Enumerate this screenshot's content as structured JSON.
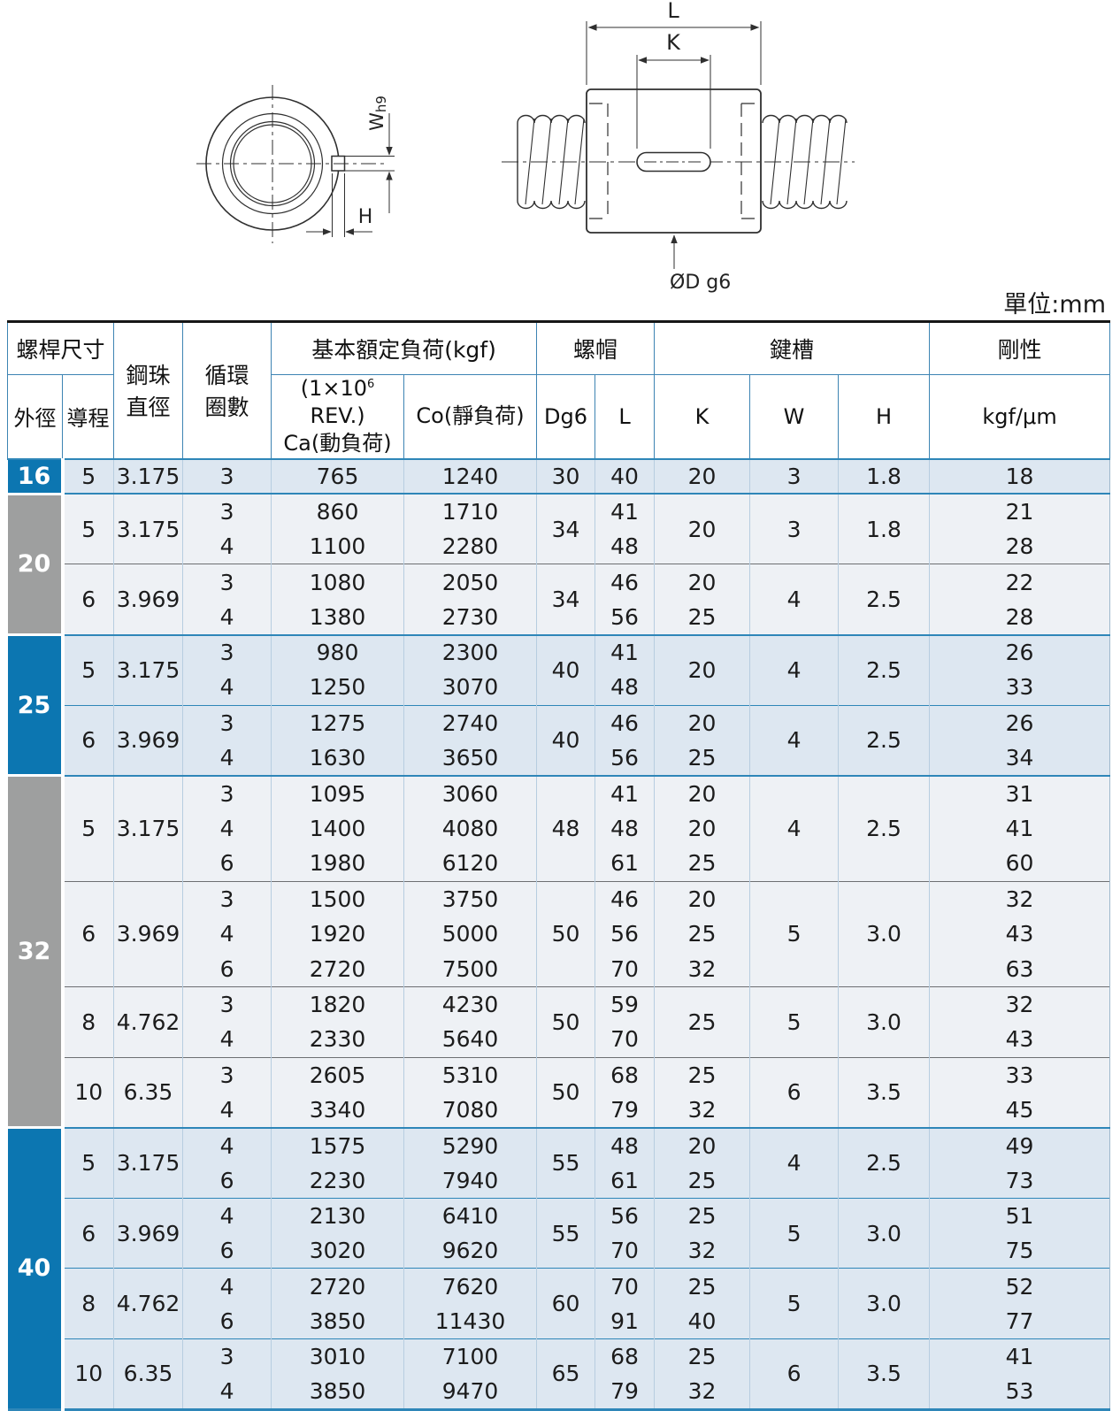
{
  "unit_label": "單位:mm",
  "diagram": {
    "left_view": {
      "width_label": "W",
      "width_tol": "h9",
      "depth_label": "H"
    },
    "side_view": {
      "length_label": "L",
      "keyway_label": "K",
      "diameter_label": "ØD g6"
    }
  },
  "table": {
    "header": {
      "screw_size": "螺桿尺寸",
      "outer_dia": "外徑",
      "lead": "導程",
      "ball_dia_l1": "鋼珠",
      "ball_dia_l2": "直徑",
      "circuits_l1": "循環",
      "circuits_l2": "圈數",
      "load": "基本額定負荷(kgf)",
      "rev_prefix": "(1×10",
      "rev_sup": "6",
      "rev_suffix": " REV.)",
      "ca": "Ca(動負荷)",
      "co": "Co(靜負荷)",
      "nut": "螺帽",
      "dg6": "Dg6",
      "l": "L",
      "keyway": "鍵槽",
      "k": "K",
      "w": "W",
      "h": "H",
      "rigidity": "剛性",
      "rigidity_unit": "kgf/μm"
    },
    "accent_blue": "#0c76b1",
    "accent_gray": "#9e9f9f",
    "groups": [
      {
        "dia": "16",
        "theme": "blue",
        "subs": [
          {
            "lead": "5",
            "ball": "3.175",
            "dg6": "30",
            "w": "3",
            "h": "1.8",
            "k": "20",
            "rows": [
              {
                "c": "3",
                "ca": "765",
                "co": "1240",
                "l": "40",
                "r": "18"
              }
            ]
          }
        ]
      },
      {
        "dia": "20",
        "theme": "gray",
        "subs": [
          {
            "lead": "5",
            "ball": "3.175",
            "dg6": "34",
            "w": "3",
            "h": "1.8",
            "k": "20",
            "rows": [
              {
                "c": "3",
                "ca": "860",
                "co": "1710",
                "l": "41",
                "r": "21"
              },
              {
                "c": "4",
                "ca": "1100",
                "co": "2280",
                "l": "48",
                "r": "28"
              }
            ]
          },
          {
            "lead": "6",
            "ball": "3.969",
            "dg6": "34",
            "w": "4",
            "h": "2.5",
            "rows": [
              {
                "c": "3",
                "ca": "1080",
                "co": "2050",
                "l": "46",
                "k": "20",
                "r": "22"
              },
              {
                "c": "4",
                "ca": "1380",
                "co": "2730",
                "l": "56",
                "k": "25",
                "r": "28"
              }
            ]
          }
        ]
      },
      {
        "dia": "25",
        "theme": "blue",
        "subs": [
          {
            "lead": "5",
            "ball": "3.175",
            "dg6": "40",
            "w": "4",
            "h": "2.5",
            "k": "20",
            "rows": [
              {
                "c": "3",
                "ca": "980",
                "co": "2300",
                "l": "41",
                "r": "26"
              },
              {
                "c": "4",
                "ca": "1250",
                "co": "3070",
                "l": "48",
                "r": "33"
              }
            ]
          },
          {
            "lead": "6",
            "ball": "3.969",
            "dg6": "40",
            "w": "4",
            "h": "2.5",
            "rows": [
              {
                "c": "3",
                "ca": "1275",
                "co": "2740",
                "l": "46",
                "k": "20",
                "r": "26"
              },
              {
                "c": "4",
                "ca": "1630",
                "co": "3650",
                "l": "56",
                "k": "25",
                "r": "34"
              }
            ]
          }
        ]
      },
      {
        "dia": "32",
        "theme": "gray",
        "subs": [
          {
            "lead": "5",
            "ball": "3.175",
            "dg6": "48",
            "w": "4",
            "h": "2.5",
            "rows": [
              {
                "c": "3",
                "ca": "1095",
                "co": "3060",
                "l": "41",
                "k": "20",
                "r": "31"
              },
              {
                "c": "4",
                "ca": "1400",
                "co": "4080",
                "l": "48",
                "k": "20",
                "r": "41"
              },
              {
                "c": "6",
                "ca": "1980",
                "co": "6120",
                "l": "61",
                "k": "25",
                "r": "60"
              }
            ]
          },
          {
            "lead": "6",
            "ball": "3.969",
            "dg6": "50",
            "w": "5",
            "h": "3.0",
            "rows": [
              {
                "c": "3",
                "ca": "1500",
                "co": "3750",
                "l": "46",
                "k": "20",
                "r": "32"
              },
              {
                "c": "4",
                "ca": "1920",
                "co": "5000",
                "l": "56",
                "k": "25",
                "r": "43"
              },
              {
                "c": "6",
                "ca": "2720",
                "co": "7500",
                "l": "70",
                "k": "32",
                "r": "63"
              }
            ]
          },
          {
            "lead": "8",
            "ball": "4.762",
            "dg6": "50",
            "w": "5",
            "h": "3.0",
            "k": "25",
            "rows": [
              {
                "c": "3",
                "ca": "1820",
                "co": "4230",
                "l": "59",
                "r": "32"
              },
              {
                "c": "4",
                "ca": "2330",
                "co": "5640",
                "l": "70",
                "r": "43"
              }
            ]
          },
          {
            "lead": "10",
            "ball": "6.35",
            "dg6": "50",
            "w": "6",
            "h": "3.5",
            "rows": [
              {
                "c": "3",
                "ca": "2605",
                "co": "5310",
                "l": "68",
                "k": "25",
                "r": "33"
              },
              {
                "c": "4",
                "ca": "3340",
                "co": "7080",
                "l": "79",
                "k": "32",
                "r": "45"
              }
            ]
          }
        ]
      },
      {
        "dia": "40",
        "theme": "blue",
        "subs": [
          {
            "lead": "5",
            "ball": "3.175",
            "dg6": "55",
            "w": "4",
            "h": "2.5",
            "rows": [
              {
                "c": "4",
                "ca": "1575",
                "co": "5290",
                "l": "48",
                "k": "20",
                "r": "49"
              },
              {
                "c": "6",
                "ca": "2230",
                "co": "7940",
                "l": "61",
                "k": "25",
                "r": "73"
              }
            ]
          },
          {
            "lead": "6",
            "ball": "3.969",
            "dg6": "55",
            "w": "5",
            "h": "3.0",
            "rows": [
              {
                "c": "4",
                "ca": "2130",
                "co": "6410",
                "l": "56",
                "k": "25",
                "r": "51"
              },
              {
                "c": "6",
                "ca": "3020",
                "co": "9620",
                "l": "70",
                "k": "32",
                "r": "75"
              }
            ]
          },
          {
            "lead": "8",
            "ball": "4.762",
            "dg6": "60",
            "w": "5",
            "h": "3.0",
            "rows": [
              {
                "c": "4",
                "ca": "2720",
                "co": "7620",
                "l": "70",
                "k": "25",
                "r": "52"
              },
              {
                "c": "6",
                "ca": "3850",
                "co": "11430",
                "l": "91",
                "k": "40",
                "r": "77"
              }
            ]
          },
          {
            "lead": "10",
            "ball": "6.35",
            "dg6": "65",
            "w": "6",
            "h": "3.5",
            "rows": [
              {
                "c": "3",
                "ca": "3010",
                "co": "7100",
                "l": "68",
                "k": "25",
                "r": "41"
              },
              {
                "c": "4",
                "ca": "3850",
                "co": "9470",
                "l": "79",
                "k": "32",
                "r": "53"
              }
            ]
          }
        ]
      }
    ]
  }
}
